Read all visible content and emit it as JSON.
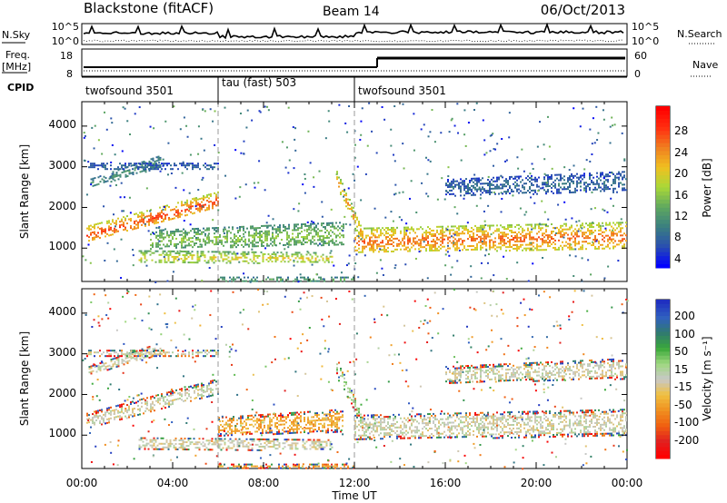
{
  "header": {
    "station": "Blackstone (fitACF)",
    "beam": "Beam 14",
    "date": "06/Oct/2013"
  },
  "noise_panel": {
    "left_label": "N.Sky",
    "right_label": "N.Search",
    "left_ticks": [
      "10^5",
      "10^0"
    ],
    "right_ticks": [
      "10^5",
      "10^0"
    ]
  },
  "freq_panel": {
    "left_label_1": "Freq.",
    "left_label_2": "[MHz]",
    "right_label": "Nave",
    "left_ticks": [
      "18",
      "8"
    ],
    "right_ticks": [
      "60",
      "0"
    ]
  },
  "cpid": {
    "label": "CPID",
    "segments": [
      {
        "name": "twofsound 3501",
        "start_hour": 0,
        "end_hour": 6
      },
      {
        "name": "tau (fast) 503",
        "start_hour": 6,
        "end_hour": 12
      },
      {
        "name": "twofsound 3501",
        "start_hour": 12,
        "end_hour": 24
      }
    ]
  },
  "axes": {
    "ylabel": "Slant Range [km]",
    "xlabel": "Time UT",
    "y_ticks": [
      "1000",
      "2000",
      "3000",
      "4000"
    ],
    "x_ticks": [
      "00:00",
      "04:00",
      "08:00",
      "12:00",
      "16:00",
      "20:00",
      "00:00"
    ]
  },
  "power_colorbar": {
    "label": "Power [dB]",
    "ticks": [
      "4",
      "8",
      "12",
      "16",
      "20",
      "24",
      "28"
    ],
    "colors": [
      "#0000ff",
      "#2a4fb0",
      "#3a7f80",
      "#5fa85f",
      "#a8d838",
      "#f0c020",
      "#f08020",
      "#ff3010",
      "#ff0000"
    ]
  },
  "velocity_colorbar": {
    "label": "Velocity [m s⁻¹]",
    "ticks": [
      "200",
      "100",
      "50",
      "15",
      "-15",
      "-50",
      "-100",
      "-200"
    ],
    "colors": [
      "#2030c0",
      "#3060c0",
      "#307a70",
      "#3aa83a",
      "#a0d880",
      "#c8c8c8",
      "#f0c040",
      "#f09020",
      "#f06010",
      "#e02020",
      "#ff0000"
    ]
  },
  "chart_data": [
    {
      "type": "heatmap",
      "title": "Power",
      "xlabel": "Time UT",
      "ylabel": "Slant Range [km]",
      "xlim": [
        0,
        24
      ],
      "ylim": [
        180,
        4600
      ],
      "x_ticks": [
        "00:00",
        "04:00",
        "08:00",
        "12:00",
        "16:00",
        "20:00",
        "00:00"
      ],
      "y_ticks": [
        1000,
        2000,
        3000,
        4000
      ],
      "colorbar": {
        "label": "Power [dB]",
        "range": [
          0,
          30
        ]
      },
      "echo_regions": [
        {
          "t0": 0.2,
          "t1": 6.0,
          "r0": 1150,
          "r1": 1550,
          "r_end0": 2000,
          "r_end1": 2400,
          "power": 26
        },
        {
          "t0": 0.3,
          "t1": 3.5,
          "r0": 2500,
          "r1": 2700,
          "r_end0": 3000,
          "r_end1": 3300,
          "power": 10
        },
        {
          "t0": 0.2,
          "t1": 6.0,
          "r0": 2950,
          "r1": 3100,
          "r_end0": 2950,
          "r_end1": 3100,
          "power": 6
        },
        {
          "t0": 2.5,
          "t1": 11.0,
          "r0": 650,
          "r1": 950,
          "r_end0": 650,
          "r_end1": 900,
          "power": 18
        },
        {
          "t0": 3.0,
          "t1": 11.5,
          "r0": 1000,
          "r1": 1450,
          "r_end0": 1100,
          "r_end1": 1650,
          "power": 14
        },
        {
          "t0": 6.0,
          "t1": 12.0,
          "r0": 200,
          "r1": 300,
          "r_end0": 200,
          "r_end1": 300,
          "power": 12
        },
        {
          "t0": 11.2,
          "t1": 12.5,
          "r0": 2500,
          "r1": 2900,
          "r_end0": 1000,
          "r_end1": 1300,
          "power": 22
        },
        {
          "t0": 12.0,
          "t1": 24.0,
          "r0": 900,
          "r1": 1500,
          "r_end0": 1000,
          "r_end1": 1650,
          "power": 24
        },
        {
          "t0": 16.0,
          "t1": 24.0,
          "r0": 2300,
          "r1": 2700,
          "r_end0": 2400,
          "r_end1": 2900,
          "power": 6
        }
      ]
    },
    {
      "type": "heatmap",
      "title": "Velocity",
      "xlabel": "Time UT",
      "ylabel": "Slant Range [km]",
      "xlim": [
        0,
        24
      ],
      "ylim": [
        180,
        4600
      ],
      "x_ticks": [
        "00:00",
        "04:00",
        "08:00",
        "12:00",
        "16:00",
        "20:00",
        "00:00"
      ],
      "y_ticks": [
        1000,
        2000,
        3000,
        4000
      ],
      "colorbar": {
        "label": "Velocity [m s-1]",
        "range": [
          -200,
          200
        ]
      },
      "echo_regions": [
        {
          "t0": 0.2,
          "t1": 6.0,
          "r0": 1150,
          "r1": 1550,
          "r_end0": 2000,
          "r_end1": 2400,
          "velocity": 0
        },
        {
          "t0": 0.3,
          "t1": 3.5,
          "r0": 2500,
          "r1": 2700,
          "r_end0": 3000,
          "r_end1": 3300,
          "velocity": 0
        },
        {
          "t0": 0.2,
          "t1": 6.0,
          "r0": 2950,
          "r1": 3100,
          "r_end0": 2950,
          "r_end1": 3100,
          "velocity": 0
        },
        {
          "t0": 2.5,
          "t1": 11.0,
          "r0": 650,
          "r1": 950,
          "r_end0": 650,
          "r_end1": 900,
          "velocity": 0
        },
        {
          "t0": 6.0,
          "t1": 11.5,
          "r0": 1000,
          "r1": 1450,
          "r_end0": 1100,
          "r_end1": 1650,
          "velocity": -60
        },
        {
          "t0": 6.0,
          "t1": 12.0,
          "r0": 200,
          "r1": 300,
          "r_end0": 200,
          "r_end1": 300,
          "velocity": -60
        },
        {
          "t0": 11.2,
          "t1": 12.5,
          "r0": 2500,
          "r1": 2900,
          "r_end0": 1000,
          "r_end1": 1300,
          "velocity": 40
        },
        {
          "t0": 12.0,
          "t1": 24.0,
          "r0": 900,
          "r1": 1500,
          "r_end0": 1000,
          "r_end1": 1650,
          "velocity": 0
        },
        {
          "t0": 16.0,
          "t1": 24.0,
          "r0": 2300,
          "r1": 2700,
          "r_end0": 2400,
          "r_end1": 2900,
          "velocity": 0
        }
      ]
    }
  ]
}
